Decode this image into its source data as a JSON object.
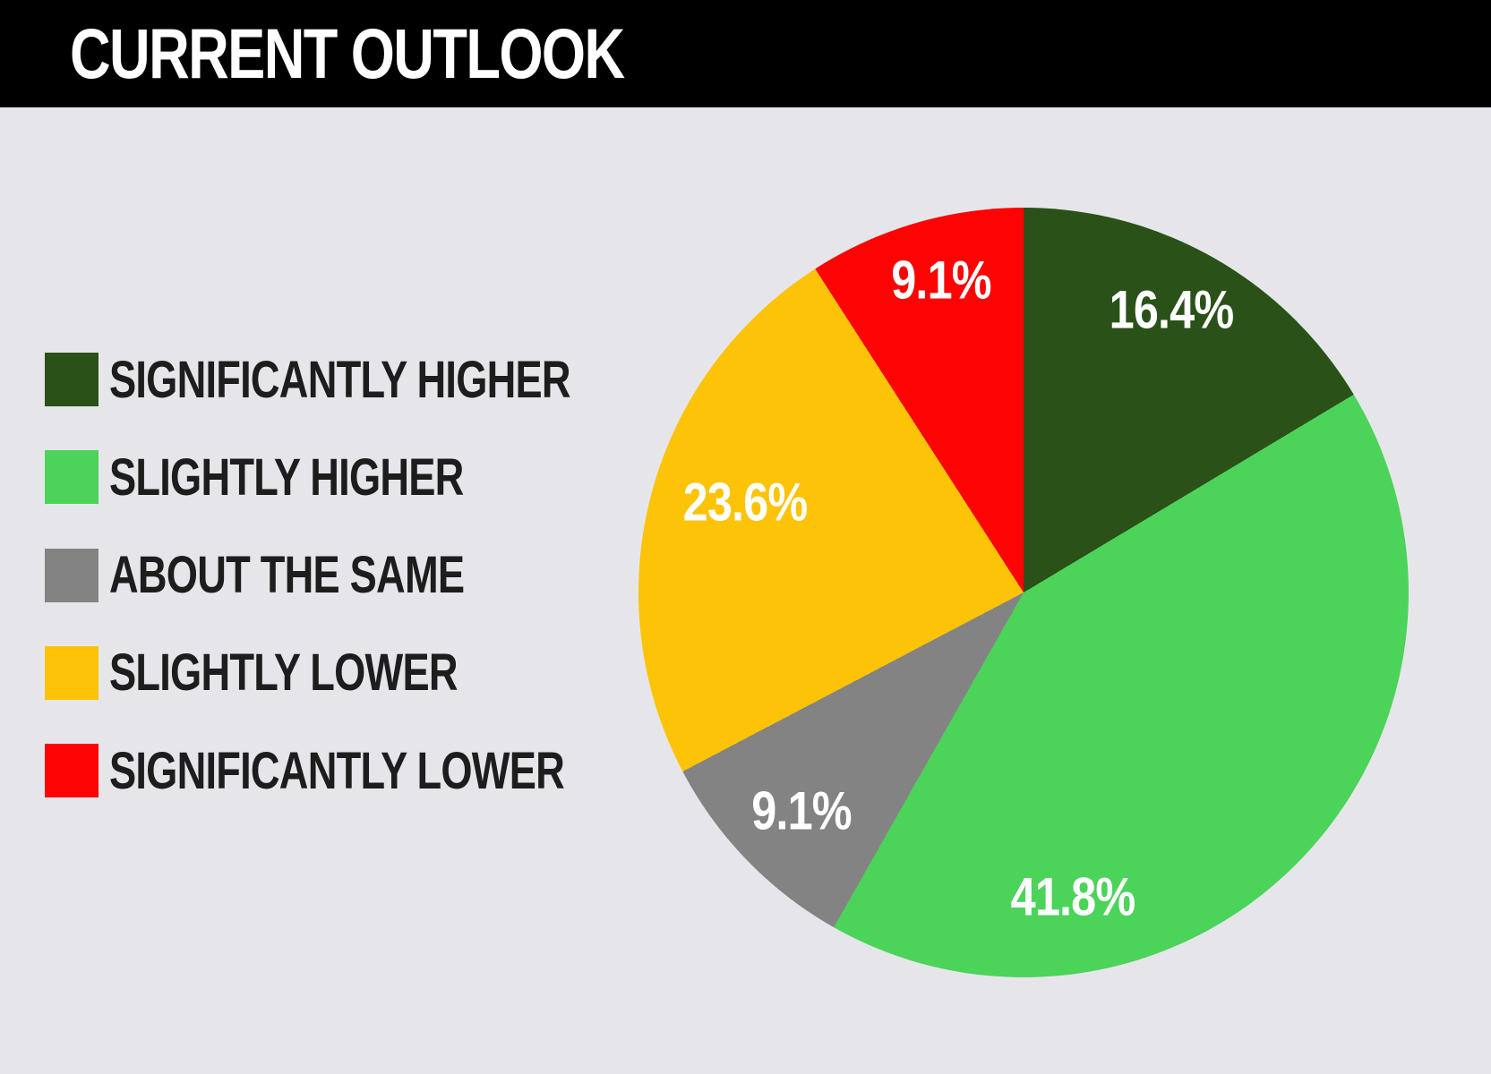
{
  "title": "CURRENT OUTLOOK",
  "colors": {
    "background": "#e6e6ea",
    "header_bar": "#000000",
    "title_text": "#ffffff",
    "legend_text": "#1d1d1d",
    "slice_label_text": "#ffffff"
  },
  "chart_data": {
    "type": "pie",
    "title": "CURRENT OUTLOOK",
    "unit": "%",
    "direction": "clockwise",
    "start_angle_deg": 0,
    "legend_position": "left",
    "slices": [
      {
        "label": "SIGNIFICANTLY HIGHER",
        "value": 16.4,
        "display": "16.4%",
        "color": "#2a5117",
        "label_angle_deg": 27.6,
        "label_radius_frac": 0.83
      },
      {
        "label": "SLIGHTLY HIGHER",
        "value": 41.8,
        "display": "41.8%",
        "color": "#4cd35a",
        "label_angle_deg": 170.8,
        "label_radius_frac": 0.8
      },
      {
        "label": "ABOUT THE SAME",
        "value": 9.1,
        "display": "9.1%",
        "color": "#838383",
        "label_angle_deg": 225.5,
        "label_radius_frac": 0.81
      },
      {
        "label": "SLIGHTLY LOWER",
        "value": 23.6,
        "display": "23.6%",
        "color": "#fdc306",
        "label_angle_deg": 288.0,
        "label_radius_frac": 0.76
      },
      {
        "label": "SIGNIFICANTLY LOWER",
        "value": 9.1,
        "display": "9.1%",
        "color": "#fe0303",
        "label_angle_deg": 345.3,
        "label_radius_frac": 0.84
      }
    ]
  }
}
